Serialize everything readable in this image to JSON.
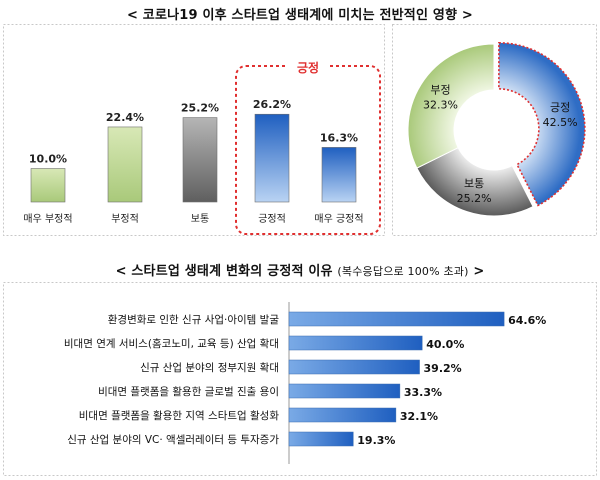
{
  "title_top": "< 코로나19 이후 스타트업 생태계에 미치는 전반적인 영향 >",
  "title_bottom": {
    "main": "< 스타트업 생태계 변화의 긍정적 이유",
    "note": "(복수응답으로 100% 초과)",
    "close": ">"
  },
  "chart_data": [
    {
      "type": "bar",
      "categories": [
        "매우 부정적",
        "부정적",
        "보통",
        "긍정적",
        "매우 긍정적"
      ],
      "values": [
        10.0,
        22.4,
        25.2,
        26.2,
        16.3
      ],
      "value_labels": [
        "10.0%",
        "22.4%",
        "25.2%",
        "26.2%",
        "16.3%"
      ],
      "highlight_group": {
        "label": "긍정",
        "categories": [
          "긍정적",
          "매우 긍정적"
        ]
      },
      "colors": [
        "#c9dea0",
        "#c9dea0",
        "#8e8e8e",
        "#4a86d0",
        "#4a86d0"
      ]
    },
    {
      "type": "pie",
      "donut": true,
      "labels": [
        "긍정",
        "보통",
        "부정"
      ],
      "values": [
        42.5,
        25.2,
        32.3
      ],
      "value_labels": [
        "42.5%",
        "25.2%",
        "32.3%"
      ],
      "highlight": "긍정",
      "colors": [
        "#4a86d0",
        "#9a9a9a",
        "#c9dea0"
      ]
    },
    {
      "type": "bar",
      "orientation": "horizontal",
      "categories": [
        "환경변화로 인한 신규 사업·아이템 발굴",
        "비대면 연계 서비스(홈코노미, 교육 등) 산업 확대",
        "신규 산업 분야의 정부지원 확대",
        "비대면 플랫폼을 활용한 글로벌 진출 용이",
        "비대면 플랫폼을 활용한 지역 스타트업 활성화",
        "신규 산업 분야의 VC· 액셀러레이터 등 투자증가"
      ],
      "values": [
        64.6,
        40.0,
        39.2,
        33.3,
        32.1,
        19.3
      ],
      "value_labels": [
        "64.6%",
        "40.0%",
        "39.2%",
        "33.3%",
        "32.1%",
        "19.3%"
      ],
      "color": "#4a86d0"
    }
  ]
}
